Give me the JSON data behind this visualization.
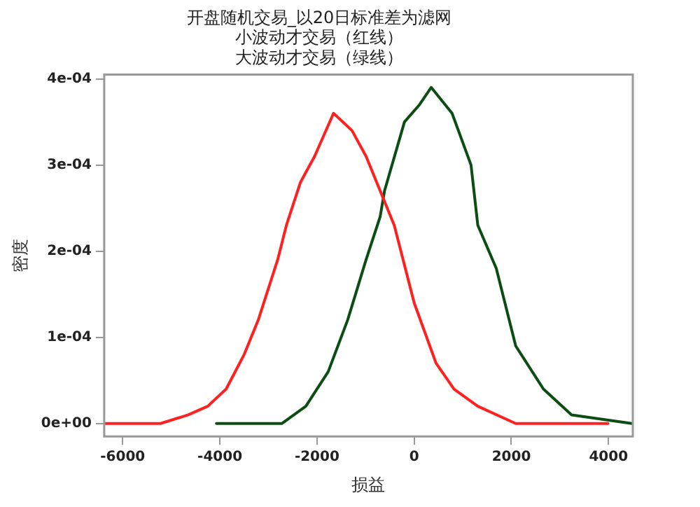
{
  "chart_data": {
    "type": "line",
    "title": "开盘随机交易_以20日标准差为滤网",
    "subtitle": "小波动才交易（红线）",
    "annotations": [
      "大波动才交易（绿线）"
    ],
    "xlabel": "损益",
    "ylabel": "密度",
    "xlim": [
      -6380,
      4500
    ],
    "xticks": [
      -6000,
      -4000,
      -2000,
      0,
      2000,
      4000
    ],
    "ylim": [
      -1.5e-05,
      0.000405
    ],
    "yticks": [
      {
        "value": 0,
        "label": "0e+00"
      },
      {
        "value": 0.0001,
        "label": "1e-04"
      },
      {
        "value": 0.0002,
        "label": "2e-04"
      },
      {
        "value": 0.0003,
        "label": "3e-04"
      },
      {
        "value": 0.0004,
        "label": "4e-04"
      }
    ],
    "grid": false,
    "legend": false,
    "marker": "none",
    "line_style": "solid",
    "series": [
      {
        "color": "#ff2020",
        "x": [
          -6370,
          -5220,
          -4650,
          -4250,
          -3870,
          -3500,
          -3210,
          -2810,
          -2630,
          -2340,
          -2050,
          -1660,
          -1280,
          -990,
          -700,
          -410,
          0,
          450,
          820,
          1310,
          2090,
          3990
        ],
        "values": [
          0,
          0,
          1e-05,
          2e-05,
          4e-05,
          8e-05,
          0.00012,
          0.00019,
          0.00023,
          0.00028,
          0.00031,
          0.00036,
          0.00034,
          0.00031,
          0.00027,
          0.00023,
          0.00014,
          7e-05,
          4e-05,
          2e-05,
          0,
          0
        ]
      },
      {
        "color": "#0b4d12",
        "x": [
          -4070,
          -2720,
          -2230,
          -1770,
          -1370,
          -990,
          -700,
          -610,
          -200,
          110,
          350,
          780,
          1170,
          1310,
          1690,
          2090,
          2660,
          3240,
          4480
        ],
        "values": [
          0,
          0,
          2e-05,
          6e-05,
          0.00012,
          0.00019,
          0.00024,
          0.00027,
          0.00035,
          0.00037,
          0.00039,
          0.00036,
          0.0003,
          0.00023,
          0.00018,
          9e-05,
          4e-05,
          1e-05,
          0
        ]
      }
    ]
  }
}
